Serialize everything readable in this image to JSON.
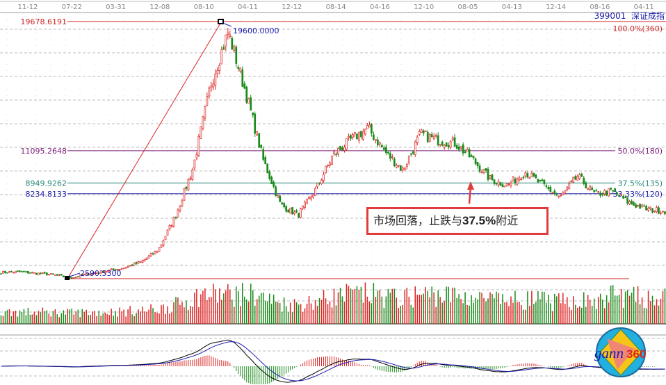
{
  "header": {
    "code": "399001",
    "name": "深证成指"
  },
  "chart_data": {
    "type": "candlestick",
    "x_tick_labels": [
      "11-12",
      "07-22",
      "03-31",
      "12-08",
      "08-10",
      "04-11",
      "12-12",
      "08-14",
      "04-16",
      "12-10",
      "08-05",
      "04-13",
      "12-14",
      "08-16",
      "04-11"
    ],
    "close_path_approx": [
      3000,
      3050,
      2950,
      2850,
      2650,
      2900,
      3100,
      3300,
      3700,
      4500,
      6800,
      10000,
      15500,
      19000,
      15000,
      10500,
      7500,
      6800,
      8500,
      10800,
      11800,
      12600,
      11000,
      9800,
      12200,
      11800,
      11600,
      10500,
      9200,
      8800,
      9700,
      8800,
      8000,
      9400,
      8200,
      8400,
      7600,
      7200,
      7100
    ],
    "ylim": [
      2590.53,
      19678.6191
    ],
    "high": {
      "label": "19600.0000",
      "value": 19600
    },
    "low": {
      "label": "2590.5300",
      "value": 2590.53
    },
    "levels": [
      {
        "value_label": "19678.6191",
        "pct_label": "100.0%(360)",
        "value": 19678.6191,
        "color": "#cc2222"
      },
      {
        "value_label": "11095.2648",
        "pct_label": "50.0%(180)",
        "value": 11095.2648,
        "color": "#7a1a7a"
      },
      {
        "value_label": "8949.9262",
        "pct_label": "37.5%(135)",
        "value": 8949.9262,
        "color": "#2a8a7a"
      },
      {
        "value_label": "8234.8133",
        "pct_label": "33.33%(120)",
        "value": 8234.8133,
        "color": "#2222aa"
      }
    ],
    "annotation": {
      "text_before": "市场回落，止跌与",
      "text_bold": "37.5%",
      "text_after": "附近"
    },
    "colors": {
      "up": "#dd2222",
      "down": "#1a8a1a",
      "dif": "#000000",
      "dea": "#1a1ab0"
    },
    "panels": [
      "price",
      "volume",
      "macd"
    ]
  },
  "logo": {
    "text": "gann",
    "num": "360"
  }
}
